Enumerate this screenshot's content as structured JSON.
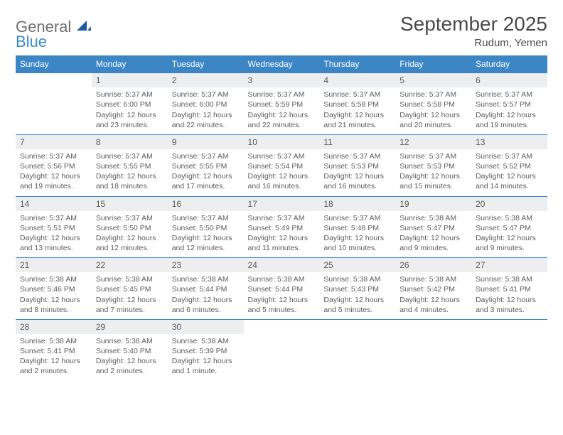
{
  "logo": {
    "word1": "General",
    "word2": "Blue",
    "word1_color": "#6e6e6e",
    "word2_color": "#3a8bc9"
  },
  "title": "September 2025",
  "location": "Rudum, Yemen",
  "header_bg": "#3d86c6",
  "header_fg": "#ffffff",
  "daynum_bg": "#eceeef",
  "text_color": "#5c5c5c",
  "week_border": "#3d86c6",
  "columns": [
    "Sunday",
    "Monday",
    "Tuesday",
    "Wednesday",
    "Thursday",
    "Friday",
    "Saturday"
  ],
  "weeks": [
    [
      null,
      {
        "n": "1",
        "sunrise": "Sunrise: 5:37 AM",
        "sunset": "Sunset: 6:00 PM",
        "d1": "Daylight: 12 hours",
        "d2": "and 23 minutes."
      },
      {
        "n": "2",
        "sunrise": "Sunrise: 5:37 AM",
        "sunset": "Sunset: 6:00 PM",
        "d1": "Daylight: 12 hours",
        "d2": "and 22 minutes."
      },
      {
        "n": "3",
        "sunrise": "Sunrise: 5:37 AM",
        "sunset": "Sunset: 5:59 PM",
        "d1": "Daylight: 12 hours",
        "d2": "and 22 minutes."
      },
      {
        "n": "4",
        "sunrise": "Sunrise: 5:37 AM",
        "sunset": "Sunset: 5:58 PM",
        "d1": "Daylight: 12 hours",
        "d2": "and 21 minutes."
      },
      {
        "n": "5",
        "sunrise": "Sunrise: 5:37 AM",
        "sunset": "Sunset: 5:58 PM",
        "d1": "Daylight: 12 hours",
        "d2": "and 20 minutes."
      },
      {
        "n": "6",
        "sunrise": "Sunrise: 5:37 AM",
        "sunset": "Sunset: 5:57 PM",
        "d1": "Daylight: 12 hours",
        "d2": "and 19 minutes."
      }
    ],
    [
      {
        "n": "7",
        "sunrise": "Sunrise: 5:37 AM",
        "sunset": "Sunset: 5:56 PM",
        "d1": "Daylight: 12 hours",
        "d2": "and 19 minutes."
      },
      {
        "n": "8",
        "sunrise": "Sunrise: 5:37 AM",
        "sunset": "Sunset: 5:55 PM",
        "d1": "Daylight: 12 hours",
        "d2": "and 18 minutes."
      },
      {
        "n": "9",
        "sunrise": "Sunrise: 5:37 AM",
        "sunset": "Sunset: 5:55 PM",
        "d1": "Daylight: 12 hours",
        "d2": "and 17 minutes."
      },
      {
        "n": "10",
        "sunrise": "Sunrise: 5:37 AM",
        "sunset": "Sunset: 5:54 PM",
        "d1": "Daylight: 12 hours",
        "d2": "and 16 minutes."
      },
      {
        "n": "11",
        "sunrise": "Sunrise: 5:37 AM",
        "sunset": "Sunset: 5:53 PM",
        "d1": "Daylight: 12 hours",
        "d2": "and 16 minutes."
      },
      {
        "n": "12",
        "sunrise": "Sunrise: 5:37 AM",
        "sunset": "Sunset: 5:53 PM",
        "d1": "Daylight: 12 hours",
        "d2": "and 15 minutes."
      },
      {
        "n": "13",
        "sunrise": "Sunrise: 5:37 AM",
        "sunset": "Sunset: 5:52 PM",
        "d1": "Daylight: 12 hours",
        "d2": "and 14 minutes."
      }
    ],
    [
      {
        "n": "14",
        "sunrise": "Sunrise: 5:37 AM",
        "sunset": "Sunset: 5:51 PM",
        "d1": "Daylight: 12 hours",
        "d2": "and 13 minutes."
      },
      {
        "n": "15",
        "sunrise": "Sunrise: 5:37 AM",
        "sunset": "Sunset: 5:50 PM",
        "d1": "Daylight: 12 hours",
        "d2": "and 12 minutes."
      },
      {
        "n": "16",
        "sunrise": "Sunrise: 5:37 AM",
        "sunset": "Sunset: 5:50 PM",
        "d1": "Daylight: 12 hours",
        "d2": "and 12 minutes."
      },
      {
        "n": "17",
        "sunrise": "Sunrise: 5:37 AM",
        "sunset": "Sunset: 5:49 PM",
        "d1": "Daylight: 12 hours",
        "d2": "and 11 minutes."
      },
      {
        "n": "18",
        "sunrise": "Sunrise: 5:37 AM",
        "sunset": "Sunset: 5:48 PM",
        "d1": "Daylight: 12 hours",
        "d2": "and 10 minutes."
      },
      {
        "n": "19",
        "sunrise": "Sunrise: 5:38 AM",
        "sunset": "Sunset: 5:47 PM",
        "d1": "Daylight: 12 hours",
        "d2": "and 9 minutes."
      },
      {
        "n": "20",
        "sunrise": "Sunrise: 5:38 AM",
        "sunset": "Sunset: 5:47 PM",
        "d1": "Daylight: 12 hours",
        "d2": "and 9 minutes."
      }
    ],
    [
      {
        "n": "21",
        "sunrise": "Sunrise: 5:38 AM",
        "sunset": "Sunset: 5:46 PM",
        "d1": "Daylight: 12 hours",
        "d2": "and 8 minutes."
      },
      {
        "n": "22",
        "sunrise": "Sunrise: 5:38 AM",
        "sunset": "Sunset: 5:45 PM",
        "d1": "Daylight: 12 hours",
        "d2": "and 7 minutes."
      },
      {
        "n": "23",
        "sunrise": "Sunrise: 5:38 AM",
        "sunset": "Sunset: 5:44 PM",
        "d1": "Daylight: 12 hours",
        "d2": "and 6 minutes."
      },
      {
        "n": "24",
        "sunrise": "Sunrise: 5:38 AM",
        "sunset": "Sunset: 5:44 PM",
        "d1": "Daylight: 12 hours",
        "d2": "and 5 minutes."
      },
      {
        "n": "25",
        "sunrise": "Sunrise: 5:38 AM",
        "sunset": "Sunset: 5:43 PM",
        "d1": "Daylight: 12 hours",
        "d2": "and 5 minutes."
      },
      {
        "n": "26",
        "sunrise": "Sunrise: 5:38 AM",
        "sunset": "Sunset: 5:42 PM",
        "d1": "Daylight: 12 hours",
        "d2": "and 4 minutes."
      },
      {
        "n": "27",
        "sunrise": "Sunrise: 5:38 AM",
        "sunset": "Sunset: 5:41 PM",
        "d1": "Daylight: 12 hours",
        "d2": "and 3 minutes."
      }
    ],
    [
      {
        "n": "28",
        "sunrise": "Sunrise: 5:38 AM",
        "sunset": "Sunset: 5:41 PM",
        "d1": "Daylight: 12 hours",
        "d2": "and 2 minutes."
      },
      {
        "n": "29",
        "sunrise": "Sunrise: 5:38 AM",
        "sunset": "Sunset: 5:40 PM",
        "d1": "Daylight: 12 hours",
        "d2": "and 2 minutes."
      },
      {
        "n": "30",
        "sunrise": "Sunrise: 5:38 AM",
        "sunset": "Sunset: 5:39 PM",
        "d1": "Daylight: 12 hours",
        "d2": "and 1 minute."
      },
      null,
      null,
      null,
      null
    ]
  ]
}
